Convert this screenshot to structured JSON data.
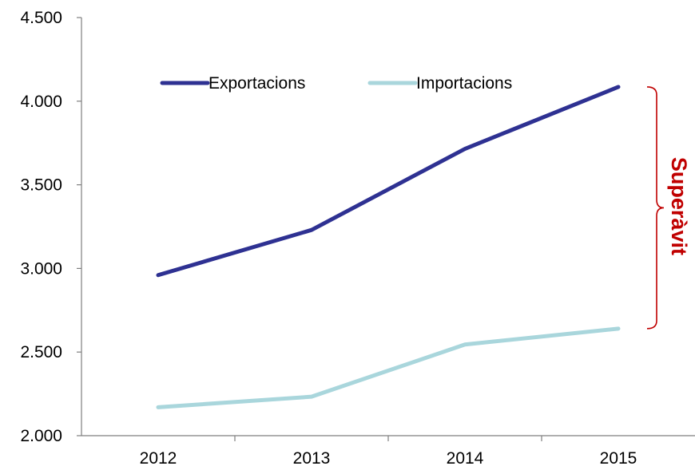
{
  "chart_data": {
    "type": "line",
    "categories": [
      "2012",
      "2013",
      "2014",
      "2015"
    ],
    "series": [
      {
        "name": "Exportacions",
        "values": [
          2960,
          3230,
          3715,
          4085
        ],
        "color": "#2E3192"
      },
      {
        "name": "Importacions",
        "values": [
          2170,
          2233,
          2545,
          2640
        ],
        "color": "#A9D6DC"
      }
    ],
    "ylim": [
      2000,
      4500
    ],
    "yticks": [
      2000,
      2500,
      3000,
      3500,
      4000,
      4500
    ],
    "ytick_labels": [
      "2.000",
      "2.500",
      "3.000",
      "3.500",
      "4.000",
      "4.500"
    ],
    "grid": false,
    "legend_position": "top-center",
    "annotation": {
      "text": "Superàvit",
      "from_value": 2640,
      "to_value": 4085,
      "category": "2015",
      "color": "#C00000"
    }
  }
}
